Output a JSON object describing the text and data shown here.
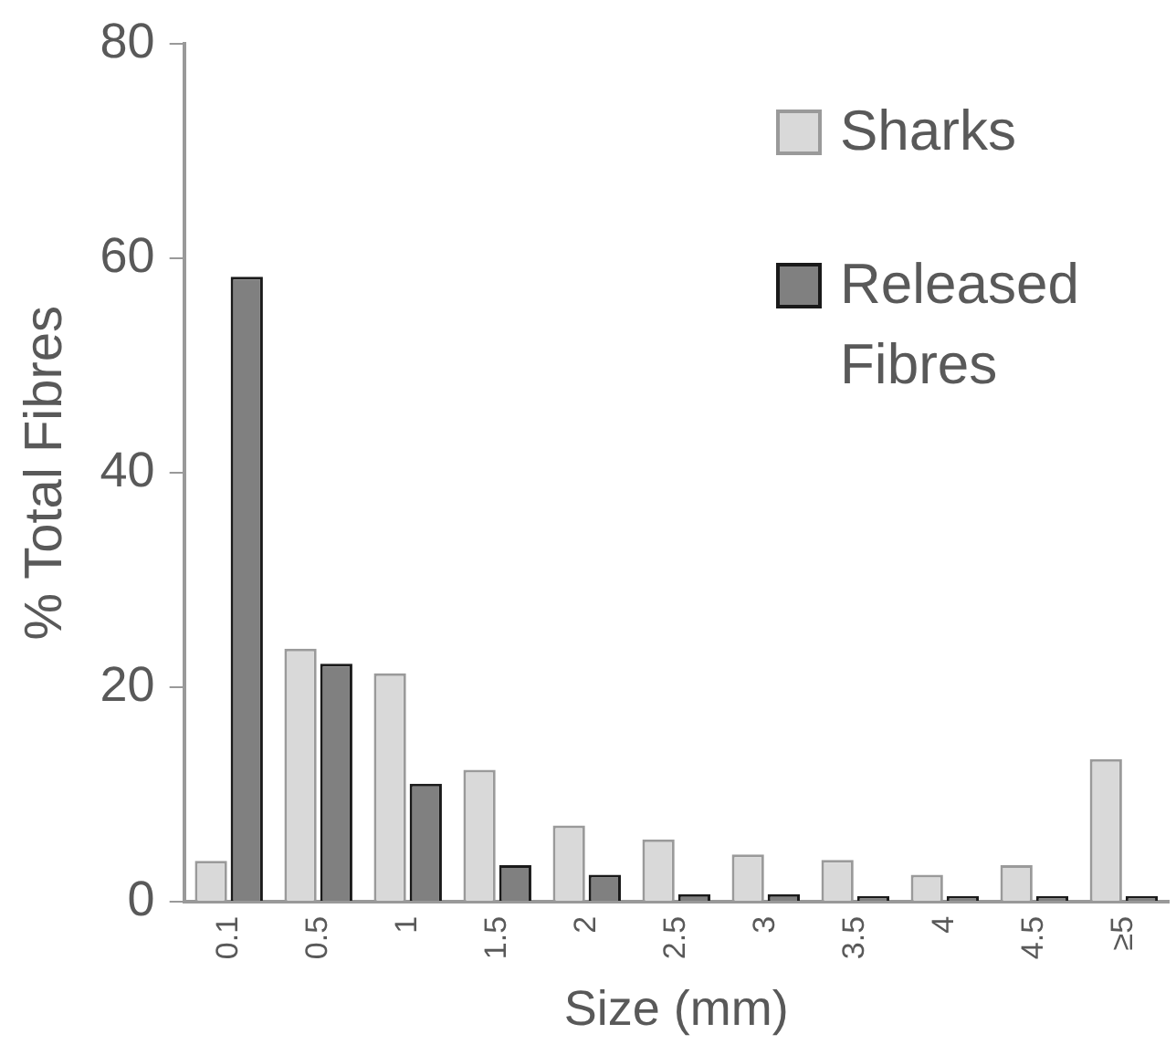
{
  "chart_data": {
    "type": "bar",
    "xlabel": "Size (mm)",
    "ylabel": "% Total Fibres",
    "categories": [
      "0.1",
      "0.5",
      "1",
      "1.5",
      "2",
      "2.5",
      "3",
      "3.5",
      "4",
      "4.5",
      "≥5"
    ],
    "series": [
      {
        "name": "Sharks",
        "color": "#d9d9d9",
        "values": [
          3.8,
          23.6,
          21.3,
          12.3,
          7.1,
          5.8,
          4.4,
          3.9,
          2.5,
          3.4,
          13.3
        ]
      },
      {
        "name": "Released Fibres",
        "color": "#808080",
        "values": [
          58.3,
          22.2,
          11.0,
          3.4,
          2.5,
          0.7,
          0.7,
          0.5,
          0.5,
          0.5,
          0.5
        ]
      }
    ],
    "ylim": [
      0,
      80
    ],
    "yticks": [
      0,
      20,
      40,
      60,
      80
    ],
    "grid": false,
    "legend": "top right"
  }
}
